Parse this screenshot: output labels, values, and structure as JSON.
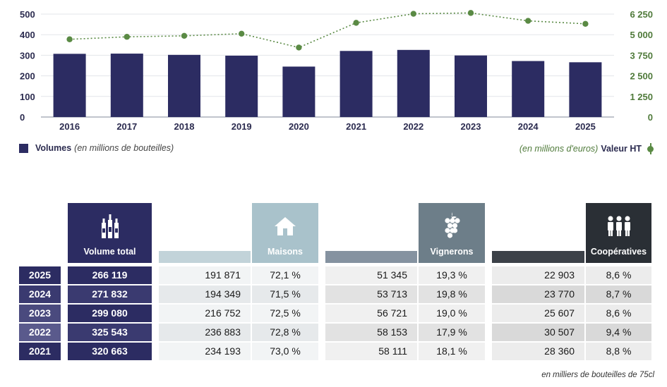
{
  "chart_data": {
    "type": "bar",
    "categories": [
      "2016",
      "2017",
      "2018",
      "2019",
      "2020",
      "2021",
      "2022",
      "2023",
      "2024",
      "2025"
    ],
    "series": [
      {
        "name": "Volumes",
        "axis": "left",
        "type": "bar",
        "color": "#2c2c62",
        "values": [
          307,
          308,
          302,
          298,
          245,
          321,
          326,
          299,
          272,
          266
        ]
      },
      {
        "name": "Valeur HT",
        "axis": "right",
        "type": "line",
        "style": "dotted",
        "color": "#5a8a44",
        "values": [
          4720,
          4870,
          4930,
          5060,
          4220,
          5720,
          6270,
          6320,
          5840,
          5660
        ]
      }
    ],
    "y_left": {
      "range": [
        0,
        500
      ],
      "ticks": [
        "0",
        "100",
        "200",
        "300",
        "400",
        "500"
      ]
    },
    "y_right": {
      "range": [
        0,
        6250
      ],
      "ticks": [
        "0",
        "1 250",
        "2 500",
        "3 750",
        "5 000",
        "6 250"
      ],
      "color": "#4f7a3a"
    },
    "grid": "horizontal"
  },
  "legend": {
    "volumes_label": "Volumes",
    "volumes_unit": "(en millions de bouteilles)",
    "valeur_unit": "(en millions d'euros)",
    "valeur_label": "Valeur HT"
  },
  "table": {
    "headers": {
      "total": "Volume total",
      "maisons": "Maisons",
      "vignerons": "Vignerons",
      "cooperatives": "Coopératives"
    },
    "icons": {
      "total": "bottles-icon",
      "maisons": "house-icon",
      "vignerons": "grapes-icon",
      "cooperatives": "people-icon"
    },
    "rows": [
      {
        "year": "2025",
        "total": "266 119",
        "maisons": "191 871",
        "maisons_pct": "72,1 %",
        "vignerons": "51 345",
        "vignerons_pct": "19,3 %",
        "coop": "22 903",
        "coop_pct": "8,6 %"
      },
      {
        "year": "2024",
        "total": "271 832",
        "maisons": "194 349",
        "maisons_pct": "71,5 %",
        "vignerons": "53 713",
        "vignerons_pct": "19,8 %",
        "coop": "23 770",
        "coop_pct": "8,7 %"
      },
      {
        "year": "2023",
        "total": "299 080",
        "maisons": "216 752",
        "maisons_pct": "72,5 %",
        "vignerons": "56 721",
        "vignerons_pct": "19,0 %",
        "coop": "25 607",
        "coop_pct": "8,6 %"
      },
      {
        "year": "2022",
        "total": "325 543",
        "maisons": "236 883",
        "maisons_pct": "72,8 %",
        "vignerons": "58 153",
        "vignerons_pct": "17,9 %",
        "coop": "30 507",
        "coop_pct": "9,4 %"
      },
      {
        "year": "2021",
        "total": "320 663",
        "maisons": "234 193",
        "maisons_pct": "73,0 %",
        "vignerons": "58 111",
        "vignerons_pct": "18,1 %",
        "coop": "28 360",
        "coop_pct": "8,8 %"
      }
    ],
    "footnote": "en milliers de bouteilles de 75cl"
  },
  "colors": {
    "navy": "#2c2c62",
    "maisons": "#a9c2cb",
    "vignerons": "#6d7e89",
    "coop": "#2a2f35",
    "green": "#5a8a44"
  }
}
